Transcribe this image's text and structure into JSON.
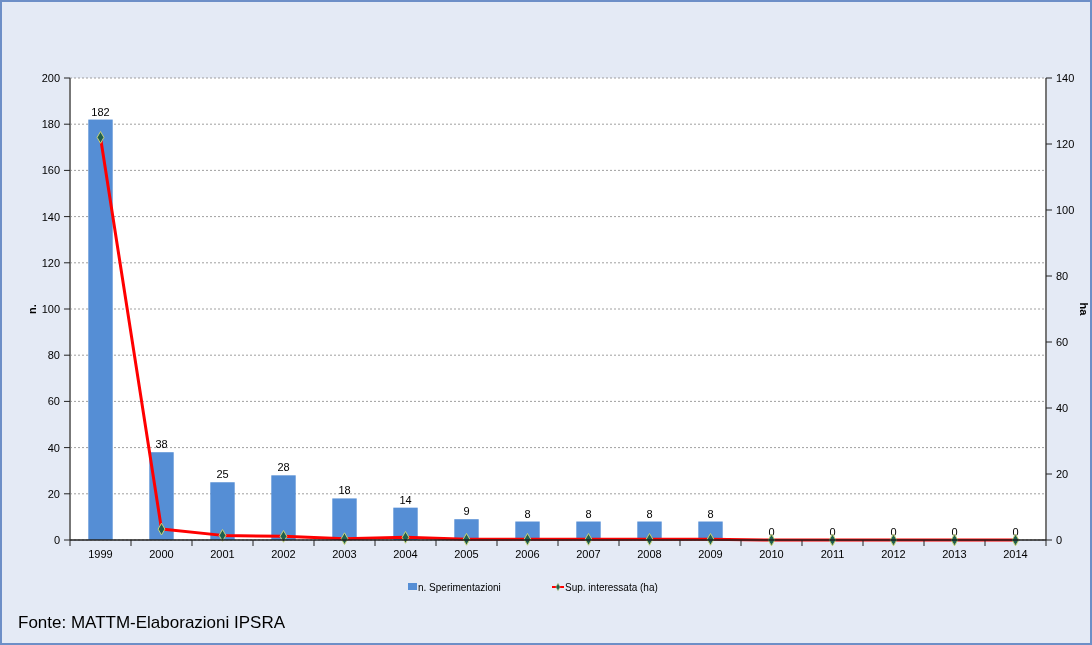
{
  "chart_data": {
    "type": "bar",
    "categories": [
      "1999",
      "2000",
      "2001",
      "2002",
      "2003",
      "2004",
      "2005",
      "2006",
      "2007",
      "2008",
      "2009",
      "2010",
      "2011",
      "2012",
      "2013",
      "2014"
    ],
    "series": [
      {
        "name": "n. Sperimentazioni",
        "color": "#558ed5",
        "values": [
          182,
          38,
          25,
          28,
          18,
          14,
          9,
          8,
          8,
          8,
          8,
          0,
          0,
          0,
          0,
          0
        ],
        "value_labels": [
          "182",
          "38",
          "25",
          "28",
          "18",
          "14",
          "9",
          "8",
          "8",
          "8",
          "8",
          "0",
          "0",
          "0",
          "0",
          "0"
        ]
      },
      {
        "name": "Sup. interessata (ha)",
        "type": "line",
        "axis": "y2",
        "color": "#ff0000",
        "values": [
          122,
          3.3,
          1.4,
          1.1,
          0.4,
          0.8,
          0.2,
          0.2,
          0.2,
          0.2,
          0.2,
          0,
          0,
          0,
          0,
          0
        ]
      }
    ],
    "ylabel": "n.",
    "y2label": "ha",
    "ylim": [
      0,
      200
    ],
    "yticks": [
      0,
      20,
      40,
      60,
      80,
      100,
      120,
      140,
      160,
      180,
      200
    ],
    "y2lim": [
      0,
      140
    ],
    "y2ticks": [
      0,
      20,
      40,
      60,
      80,
      100,
      120,
      140
    ],
    "grid": "y",
    "legend": "bottom",
    "marker": "diamond",
    "line_style": "solid",
    "annotations": [
      "Fonte: MATTM-Elaborazioni IPSRA"
    ]
  }
}
